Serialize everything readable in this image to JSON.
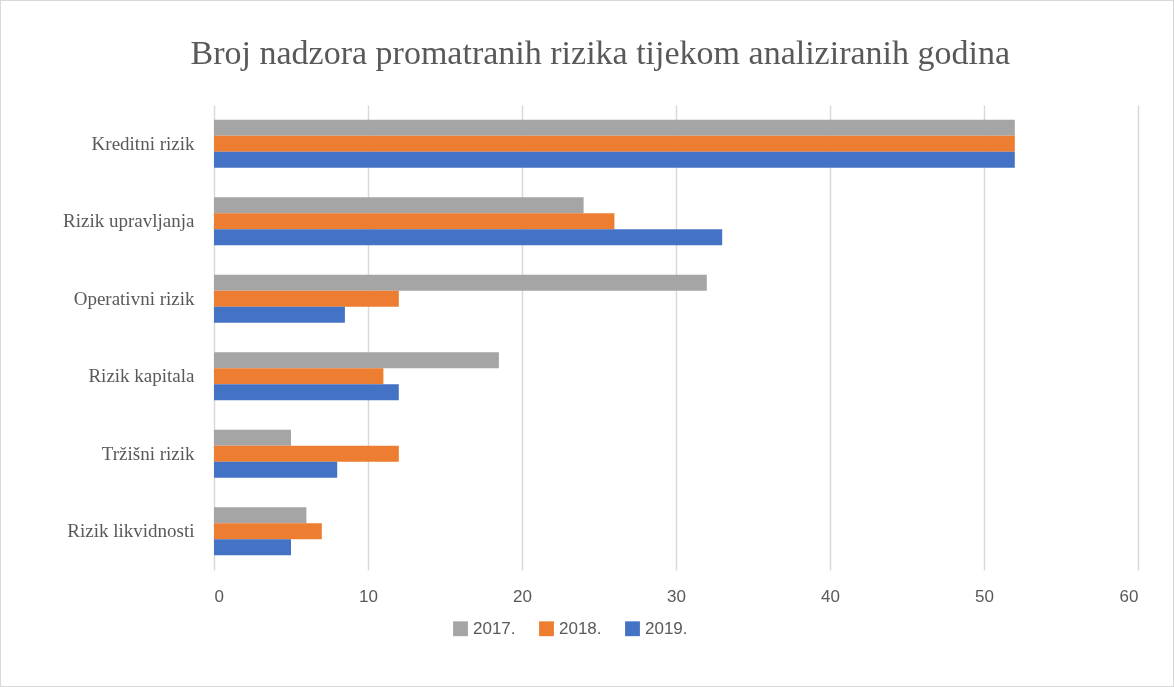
{
  "chart_data": {
    "type": "bar",
    "orientation": "horizontal",
    "title": "Broj nadzora promatranih rizika tijekom analiziranih godina",
    "categories": [
      "Kreditni rizik",
      "Rizik upravljanja",
      "Operativni rizik",
      "Rizik kapitala",
      "Tržišni rizik",
      "Rizik likvidnosti"
    ],
    "series": [
      {
        "name": "2017.",
        "color": "#a5a5a5",
        "values": [
          52,
          24,
          32,
          18.5,
          5,
          6
        ]
      },
      {
        "name": "2018.",
        "color": "#ed7d31",
        "values": [
          52,
          26,
          12,
          11,
          12,
          7
        ]
      },
      {
        "name": "2019.",
        "color": "#4472c4",
        "values": [
          52,
          33,
          8.5,
          12,
          8,
          5
        ]
      }
    ],
    "xlim": [
      0,
      60
    ],
    "xticks": [
      0,
      10,
      20,
      30,
      40,
      50,
      60
    ],
    "grid": "x",
    "legend": "bottom"
  }
}
